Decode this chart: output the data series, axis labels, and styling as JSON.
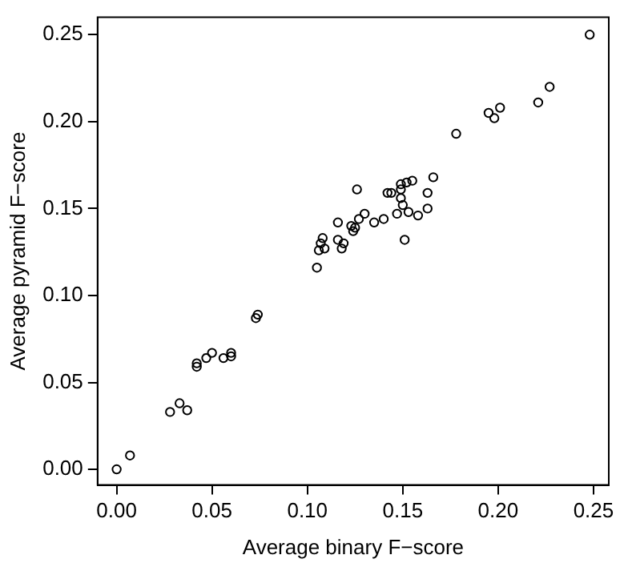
{
  "chart_data": {
    "type": "scatter",
    "xlabel": "Average binary F−score",
    "ylabel": "Average pyramid F−score",
    "marker": "circle",
    "grid": false,
    "legend": false,
    "xlim": [
      -0.01,
      0.258
    ],
    "ylim": [
      -0.009,
      0.26
    ],
    "xticks": [
      {
        "value": 0,
        "label": "0.00"
      },
      {
        "value": 0.05,
        "label": "0.05"
      },
      {
        "value": 0.1,
        "label": "0.10"
      },
      {
        "value": 0.15,
        "label": "0.15"
      },
      {
        "value": 0.2,
        "label": "0.20"
      },
      {
        "value": 0.25,
        "label": "0.25"
      }
    ],
    "yticks": [
      {
        "value": 0,
        "label": "0.00"
      },
      {
        "value": 0.05,
        "label": "0.05"
      },
      {
        "value": 0.1,
        "label": "0.10"
      },
      {
        "value": 0.15,
        "label": "0.15"
      },
      {
        "value": 0.2,
        "label": "0.20"
      },
      {
        "value": 0.25,
        "label": "0.25"
      }
    ],
    "series": [
      {
        "color": "#000000",
        "x": [
          0,
          0.007,
          0.028,
          0.033,
          0.037,
          0.042,
          0.042,
          0.047,
          0.05,
          0.056,
          0.06,
          0.06,
          0.073,
          0.074,
          0.248,
          0.227,
          0.221,
          0.201,
          0.195,
          0.198,
          0.178,
          0.166,
          0.155,
          0.152,
          0.149,
          0.149,
          0.126,
          0.142,
          0.144,
          0.163,
          0.149,
          0.15,
          0.163,
          0.147,
          0.153,
          0.158,
          0.13,
          0.127,
          0.14,
          0.135,
          0.116,
          0.123,
          0.125,
          0.124,
          0.151,
          0.108,
          0.107,
          0.109,
          0.106,
          0.116,
          0.119,
          0.118,
          0.105
        ],
        "values": [
          0,
          0.008,
          0.033,
          0.038,
          0.034,
          0.061,
          0.059,
          0.064,
          0.067,
          0.064,
          0.065,
          0.067,
          0.087,
          0.089,
          0.25,
          0.22,
          0.211,
          0.208,
          0.205,
          0.202,
          0.193,
          0.168,
          0.166,
          0.165,
          0.164,
          0.161,
          0.161,
          0.159,
          0.159,
          0.159,
          0.156,
          0.152,
          0.15,
          0.147,
          0.148,
          0.146,
          0.147,
          0.144,
          0.144,
          0.142,
          0.142,
          0.14,
          0.139,
          0.137,
          0.132,
          0.133,
          0.13,
          0.127,
          0.126,
          0.132,
          0.13,
          0.127,
          0.116
        ]
      }
    ]
  }
}
